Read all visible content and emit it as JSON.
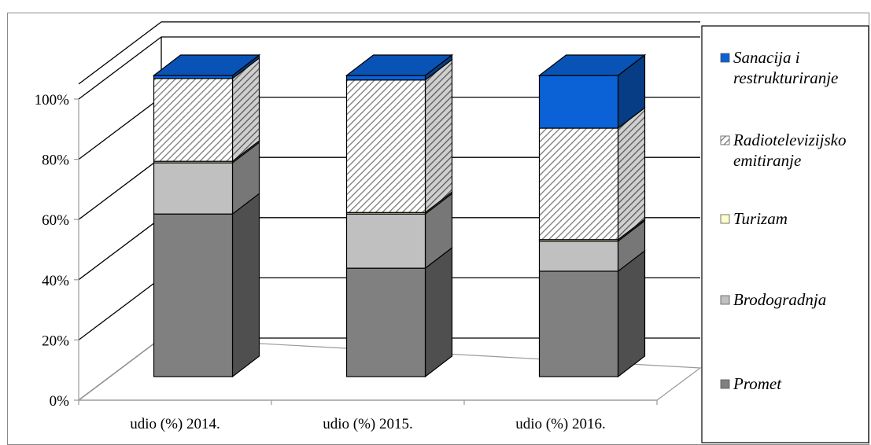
{
  "chart_data": {
    "type": "bar",
    "stacked": true,
    "percent_stacked": true,
    "three_d": true,
    "title": "",
    "xlabel": "",
    "ylabel": "",
    "categories": [
      "udio (%) 2014.",
      "udio (%) 2015.",
      "udio (%) 2016."
    ],
    "y_ticks": [
      "0%",
      "20%",
      "40%",
      "60%",
      "80%",
      "100%"
    ],
    "ylim": [
      0,
      100
    ],
    "grid": true,
    "legend_position": "right",
    "series": [
      {
        "name": "Promet",
        "values": [
          54,
          36,
          35
        ],
        "color": "#808080",
        "pattern": "solid"
      },
      {
        "name": "Brodogradnja",
        "values": [
          17,
          18,
          10
        ],
        "color": "#c0c0c0",
        "pattern": "solid"
      },
      {
        "name": "Turizam",
        "values": [
          0.5,
          0.5,
          0.5
        ],
        "color": "#ffffcc",
        "pattern": "solid"
      },
      {
        "name": "Radiotelevizijsko emitiranje",
        "values": [
          27.5,
          44,
          37
        ],
        "color": "#ffffff",
        "pattern": "diagonal-hatch"
      },
      {
        "name": "Sanacija i restrukturiranje",
        "values": [
          1,
          1.5,
          17.5
        ],
        "color": "#0a62d6",
        "pattern": "solid"
      }
    ],
    "legend_lines": [
      [
        "Sanacija i",
        "restrukturiranje"
      ],
      [
        "Radiotelevizijsko",
        "emitiranje"
      ],
      [
        "Turizam"
      ],
      [
        "Brodogradnja"
      ],
      [
        "Promet"
      ]
    ]
  }
}
